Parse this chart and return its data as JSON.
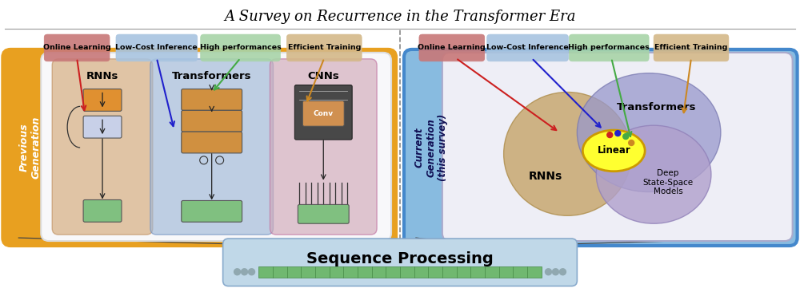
{
  "title": "A Survey on Recurrence in the Transformer Era",
  "title_fontsize": 13,
  "background_color": "#ffffff",
  "tags_left": [
    "Online Learning",
    "Low-Cost Inference",
    "High performances",
    "Efficient Training"
  ],
  "tags_right": [
    "Online Learning",
    "Low-Cost Inference",
    "High performances",
    "Efficient Training"
  ],
  "tag_colors": [
    "#c87878",
    "#a8c4e0",
    "#a8d4a8",
    "#d4b888"
  ],
  "left_panel_label": "Previous\nGeneration",
  "right_panel_label": "Current\nGeneration\n(this survey)",
  "left_outer_color": "#e8a020",
  "right_outer_color": "#6aaad8",
  "rnn_color": "#d4a878",
  "transformer_color_left": "#a0b8d8",
  "transformer_color_right": "#a8a8d0",
  "cnn_color": "#d0a8b8",
  "ssm_color": "#b8a0cc",
  "linear_color": "#ffff40",
  "seq_box_color": "#c0d8e8",
  "seq_text": "Sequence Processing",
  "seq_fontsize": 14,
  "arrow_colors": {
    "online": "#cc2020",
    "low_cost": "#2020cc",
    "high_perf": "#44aa44",
    "efficient": "#cc8822"
  }
}
